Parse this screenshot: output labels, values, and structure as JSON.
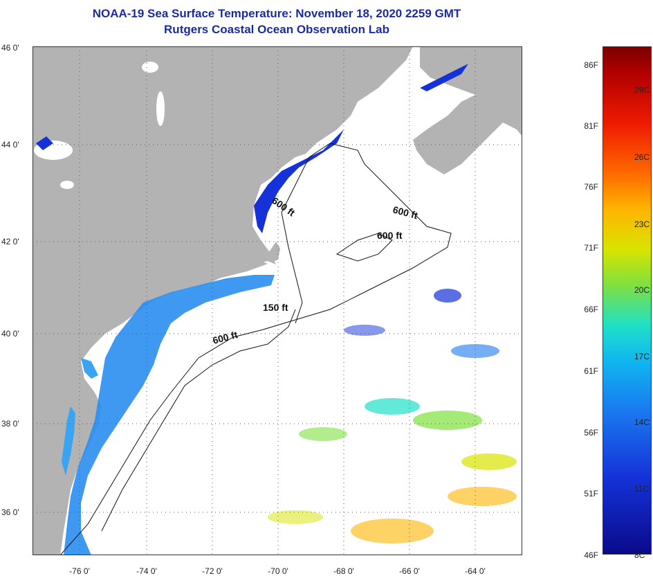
{
  "title": {
    "line1": "NOAA-19 Sea Surface Temperature:  November 18, 2020 2259 GMT",
    "line2": "Rutgers Coastal Ocean Observation Lab"
  },
  "latitude_labels": [
    "46 0'",
    "44 0'",
    "42 0'",
    "40 0'",
    "38 0'",
    "36 0'"
  ],
  "longitude_labels": [
    "-76 0'",
    "-74 0'",
    "-72 0'",
    "-70 0'",
    "-68 0'",
    "-66 0'",
    "-64 0'"
  ],
  "contour_labels": [
    "600 ft",
    "600 ft",
    "600 ft",
    "150 ft",
    "600 ft"
  ],
  "colorbar": {
    "fahrenheit_labels": [
      "86F",
      "81F",
      "76F",
      "71F",
      "66F",
      "61F",
      "56F",
      "51F",
      "46F"
    ],
    "celsius_labels": [
      "29C",
      "26C",
      "23C",
      "20C",
      "17C",
      "14C",
      "11C",
      "8C"
    ],
    "colors": [
      "#7a0000",
      "#ee1a00",
      "#ffb400",
      "#7fe040",
      "#1fe0c8",
      "#1a78f0",
      "#0a0a8a"
    ]
  },
  "colors": {
    "land": "#b3b3b3",
    "title": "#1b2b9e",
    "water_cold": "#1532d8",
    "water_cool": "#2a8ef0"
  }
}
